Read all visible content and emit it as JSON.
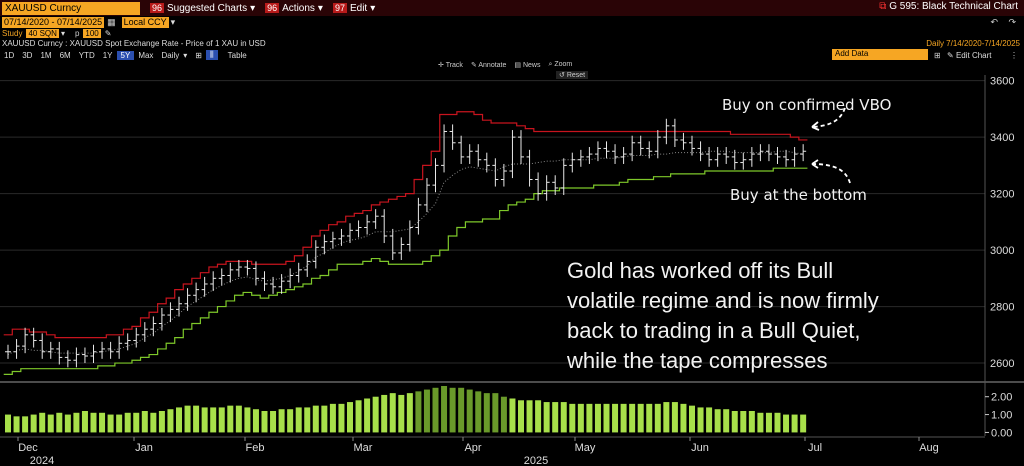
{
  "topbar": {
    "ticker": "XAUUSD Curncy",
    "menu": [
      {
        "num": "96",
        "label": "Suggested Charts"
      },
      {
        "num": "96",
        "label": "Actions"
      },
      {
        "num": "97",
        "label": "Edit"
      }
    ],
    "title": "G 595: Black Technical Chart"
  },
  "datebar": {
    "start": "07/14/2020",
    "end": "07/14/2025",
    "currency": "Local CCY"
  },
  "studybar": {
    "label": "Study",
    "study": "40 SQN",
    "p_label": "p",
    "p_value": "100"
  },
  "descbar": {
    "description": "XAUUSD Curncy : XAUUSD Spot Exchange Rate - Price of 1 XAU in USD",
    "frequency": "Daily",
    "range": "7/14/2020-7/14/2025"
  },
  "periodbar": {
    "periods": [
      "1D",
      "3D",
      "1M",
      "6M",
      "YTD",
      "1Y",
      "5Y",
      "Max"
    ],
    "active": "5Y",
    "freq_select": "Daily",
    "table": "Table",
    "add_data": "Add Data",
    "edit_chart": "Edit Chart"
  },
  "chart_tools": {
    "track": "Track",
    "annotate": "Annotate",
    "news": "News",
    "zoom": "Zoom",
    "reset": "Reset"
  },
  "annotations": {
    "vbo": "Buy on confirmed VBO",
    "bottom": "Buy at the bottom",
    "comment": [
      "Gold has worked off its Bull",
      "volatile regime and is now firmly",
      "back to trading in a Bull Quiet,",
      "while the tape compresses"
    ]
  },
  "colors": {
    "upper_band": "#c8141e",
    "lower_band": "#7ec82a",
    "midline": "#888888",
    "candle": "#e8e8e8",
    "histogram": "#a8e04a"
  },
  "chart_data": {
    "type": "line",
    "ylim": [
      2540,
      3620
    ],
    "y_ticks": [
      2600,
      2800,
      3000,
      3200,
      3400,
      3600
    ],
    "x_ticks": [
      "Dec",
      "Jan",
      "Feb",
      "Mar",
      "Apr",
      "May",
      "Jun",
      "Jul",
      "Aug"
    ],
    "x_years": [
      "2024",
      "2025"
    ],
    "price": [
      2640,
      2660,
      2700,
      2680,
      2640,
      2650,
      2620,
      2610,
      2630,
      2625,
      2640,
      2650,
      2640,
      2670,
      2680,
      2700,
      2720,
      2740,
      2770,
      2790,
      2810,
      2840,
      2860,
      2880,
      2900,
      2910,
      2930,
      2940,
      2935,
      2900,
      2880,
      2870,
      2890,
      2910,
      2930,
      2960,
      3010,
      3030,
      3040,
      3050,
      3070,
      3080,
      3100,
      3120,
      3050,
      2990,
      3020,
      3080,
      3160,
      3230,
      3300,
      3420,
      3380,
      3330,
      3350,
      3320,
      3300,
      3250,
      3280,
      3400,
      3330,
      3250,
      3200,
      3240,
      3220,
      3300,
      3320,
      3330,
      3340,
      3360,
      3350,
      3330,
      3340,
      3380,
      3360,
      3350,
      3400,
      3440,
      3390,
      3380,
      3360,
      3340,
      3320,
      3340,
      3330,
      3310,
      3320,
      3340,
      3350,
      3340,
      3330,
      3320,
      3340,
      3350
    ],
    "upper_band": [
      2700,
      2720,
      2720,
      2710,
      2710,
      2700,
      2690,
      2690,
      2690,
      2690,
      2690,
      2690,
      2700,
      2700,
      2720,
      2730,
      2760,
      2780,
      2810,
      2830,
      2860,
      2880,
      2900,
      2920,
      2940,
      2950,
      2960,
      2960,
      2960,
      2950,
      2950,
      2950,
      2950,
      2960,
      2980,
      3010,
      3050,
      3070,
      3090,
      3100,
      3120,
      3130,
      3140,
      3160,
      3170,
      3180,
      3190,
      3200,
      3250,
      3300,
      3350,
      3480,
      3480,
      3490,
      3490,
      3480,
      3460,
      3450,
      3450,
      3450,
      3440,
      3430,
      3420,
      3420,
      3420,
      3420,
      3420,
      3420,
      3420,
      3420,
      3420,
      3420,
      3420,
      3420,
      3420,
      3420,
      3420,
      3420,
      3420,
      3420,
      3420,
      3420,
      3420,
      3420,
      3420,
      3410,
      3410,
      3410,
      3410,
      3410,
      3410,
      3410,
      3400,
      3390
    ],
    "lower_band": [
      2560,
      2570,
      2580,
      2580,
      2580,
      2580,
      2580,
      2580,
      2580,
      2580,
      2580,
      2590,
      2590,
      2600,
      2600,
      2610,
      2620,
      2630,
      2650,
      2670,
      2690,
      2720,
      2740,
      2760,
      2780,
      2800,
      2820,
      2840,
      2850,
      2840,
      2830,
      2840,
      2850,
      2860,
      2870,
      2880,
      2900,
      2910,
      2930,
      2950,
      2950,
      2950,
      2960,
      2970,
      2960,
      2950,
      2950,
      2950,
      2950,
      2960,
      2980,
      3000,
      3050,
      3080,
      3100,
      3100,
      3110,
      3110,
      3140,
      3160,
      3170,
      3180,
      3200,
      3210,
      3210,
      3220,
      3220,
      3220,
      3220,
      3230,
      3230,
      3230,
      3240,
      3250,
      3250,
      3250,
      3260,
      3260,
      3270,
      3270,
      3270,
      3270,
      3280,
      3280,
      3280,
      3280,
      3280,
      3280,
      3280,
      3280,
      3290,
      3290,
      3290,
      3290
    ],
    "histogram": [
      1.0,
      0.9,
      0.9,
      1.0,
      1.1,
      1.0,
      1.1,
      1.0,
      1.1,
      1.2,
      1.1,
      1.1,
      1.0,
      1.0,
      1.1,
      1.1,
      1.2,
      1.1,
      1.2,
      1.3,
      1.4,
      1.5,
      1.5,
      1.4,
      1.4,
      1.4,
      1.5,
      1.5,
      1.4,
      1.3,
      1.2,
      1.2,
      1.3,
      1.3,
      1.4,
      1.4,
      1.5,
      1.5,
      1.6,
      1.6,
      1.7,
      1.8,
      1.9,
      2.0,
      2.1,
      2.2,
      2.1,
      2.2,
      2.3,
      2.4,
      2.5,
      2.6,
      2.5,
      2.5,
      2.4,
      2.3,
      2.2,
      2.2,
      2.0,
      1.9,
      1.8,
      1.8,
      1.8,
      1.7,
      1.7,
      1.7,
      1.6,
      1.6,
      1.6,
      1.6,
      1.6,
      1.6,
      1.6,
      1.6,
      1.6,
      1.6,
      1.6,
      1.7,
      1.7,
      1.6,
      1.5,
      1.4,
      1.4,
      1.3,
      1.3,
      1.2,
      1.2,
      1.2,
      1.1,
      1.1,
      1.1,
      1.0,
      1.0,
      1.0
    ],
    "hist_ylim": [
      -0.2,
      2.6
    ],
    "hist_ticks": [
      "2.00",
      "1.00",
      "0.00"
    ]
  }
}
